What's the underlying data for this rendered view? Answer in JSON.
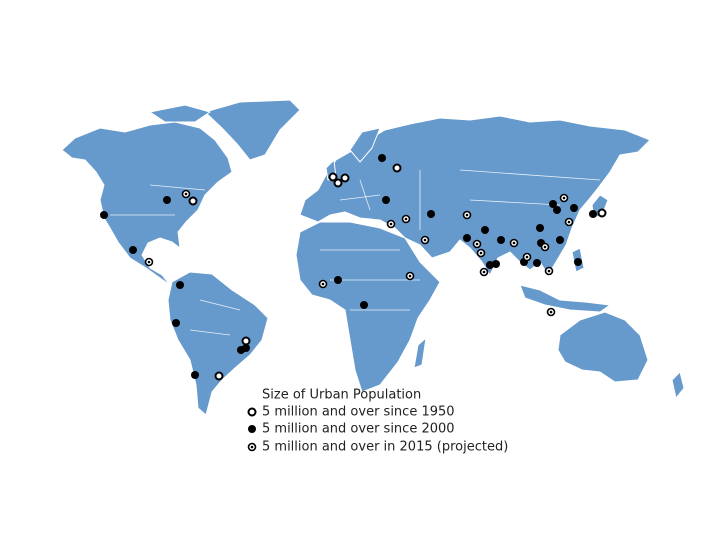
{
  "legend": {
    "title": "Size of Urban Population",
    "items": [
      "5 million and over since 1950",
      "5 million and over since 2000",
      "5 million and over in 2015 (projected)"
    ]
  }
}
